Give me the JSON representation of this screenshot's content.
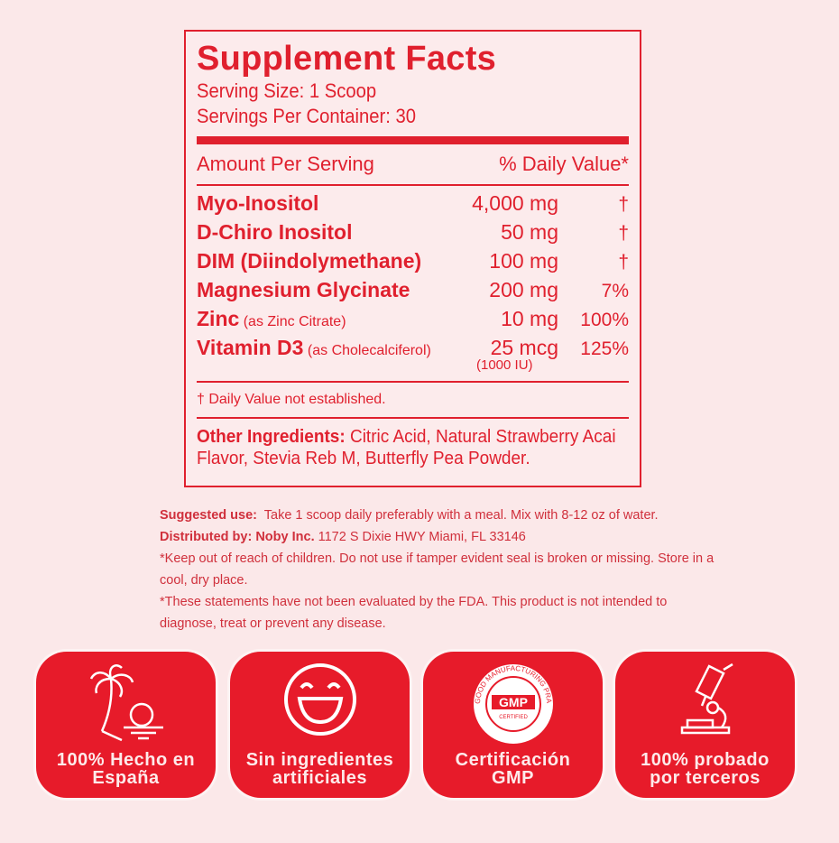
{
  "label": {
    "title": "Supplement Facts",
    "serving_size": "Serving Size: 1 Scoop",
    "servings_per_container": "Servings Per Container: 30",
    "amount_header": "Amount Per Serving",
    "dv_header": "% Daily Value*",
    "rows": [
      {
        "name": "Myo-Inositol",
        "note": "",
        "amount": "4,000 mg",
        "dv": "†"
      },
      {
        "name": "D-Chiro Inositol",
        "note": "",
        "amount": "50 mg",
        "dv": "†"
      },
      {
        "name": "DIM (Diindolymethane)",
        "note": "",
        "amount": "100 mg",
        "dv": "†"
      },
      {
        "name": "Magnesium Glycinate",
        "note": "",
        "amount": "200 mg",
        "dv": "7%"
      },
      {
        "name": "Zinc",
        "note": " (as Zinc Citrate)",
        "amount": "10 mg",
        "dv": "100%"
      },
      {
        "name": "Vitamin D3",
        "note": " (as Cholecalciferol)",
        "amount": "25 mcg",
        "dv": "125%"
      }
    ],
    "vitd_iu": "(1000 IU)",
    "footnote": "† Daily Value not established.",
    "other_label": "Other Ingredients:",
    "other_text": " Citric Acid, Natural Strawberry Acai Flavor, Stevia Reb M, Butterfly Pea Powder."
  },
  "notes": {
    "suggested_label": "Suggested use:",
    "suggested_text": "  Take 1 scoop daily preferably with a meal. Mix with 8-12 oz of water.",
    "distributed_label": "Distributed by: Noby Inc.",
    "distributed_text": " 1172 S Dixie HWY Miami, FL 33146",
    "warning": "*Keep out of reach of children. Do not use if tamper evident seal is broken or missing. Store in a cool, dry place.",
    "fda": "*These statements have not been evaluated by the FDA. This product is not intended to diagnose, treat or prevent any disease."
  },
  "badges": [
    {
      "icon": "palm-tree-icon",
      "label": "100% Hecho en España"
    },
    {
      "icon": "smiley-icon",
      "label": "Sin ingredientes artificiales"
    },
    {
      "icon": "gmp-seal-icon",
      "label": "Certificación GMP",
      "seal_ring": "GOOD MANUFACTURING PRACTICE",
      "seal_main": "GMP",
      "seal_sub": "CERTIFIED"
    },
    {
      "icon": "microscope-icon",
      "label": "100%  probado por terceros"
    }
  ],
  "colors": {
    "brand_red": "#e0202e",
    "badge_red": "#e71b2a",
    "background": "#fbe8e9"
  }
}
